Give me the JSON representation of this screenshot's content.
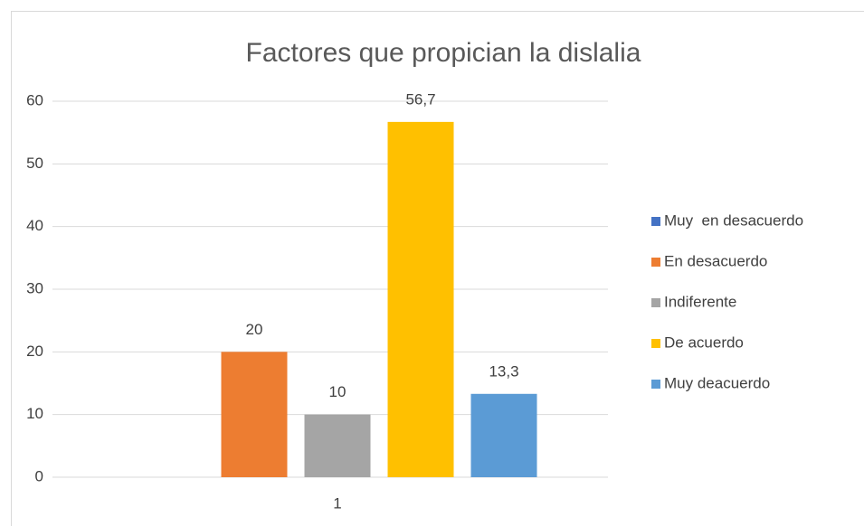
{
  "chart_data": {
    "type": "bar",
    "title": "Factores que propician la dislalia",
    "categories": [
      "1"
    ],
    "series": [
      {
        "name": "Muy  en desacuerdo",
        "color": "#4472c4",
        "values": [
          0
        ]
      },
      {
        "name": "En desacuerdo",
        "color": "#ed7d31",
        "values": [
          20
        ],
        "value_labels": [
          "20"
        ]
      },
      {
        "name": "Indiferente",
        "color": "#a5a5a5",
        "values": [
          10
        ],
        "value_labels": [
          "10"
        ]
      },
      {
        "name": "De acuerdo",
        "color": "#ffc000",
        "values": [
          56.7
        ],
        "value_labels": [
          "56,7"
        ]
      },
      {
        "name": "Muy deacuerdo",
        "color": "#5b9bd5",
        "values": [
          13.3
        ],
        "value_labels": [
          "13,3"
        ]
      }
    ],
    "ylim": [
      0,
      60
    ],
    "yticks": [
      0,
      10,
      20,
      30,
      40,
      50,
      60
    ],
    "grid": true,
    "legend": "right"
  }
}
